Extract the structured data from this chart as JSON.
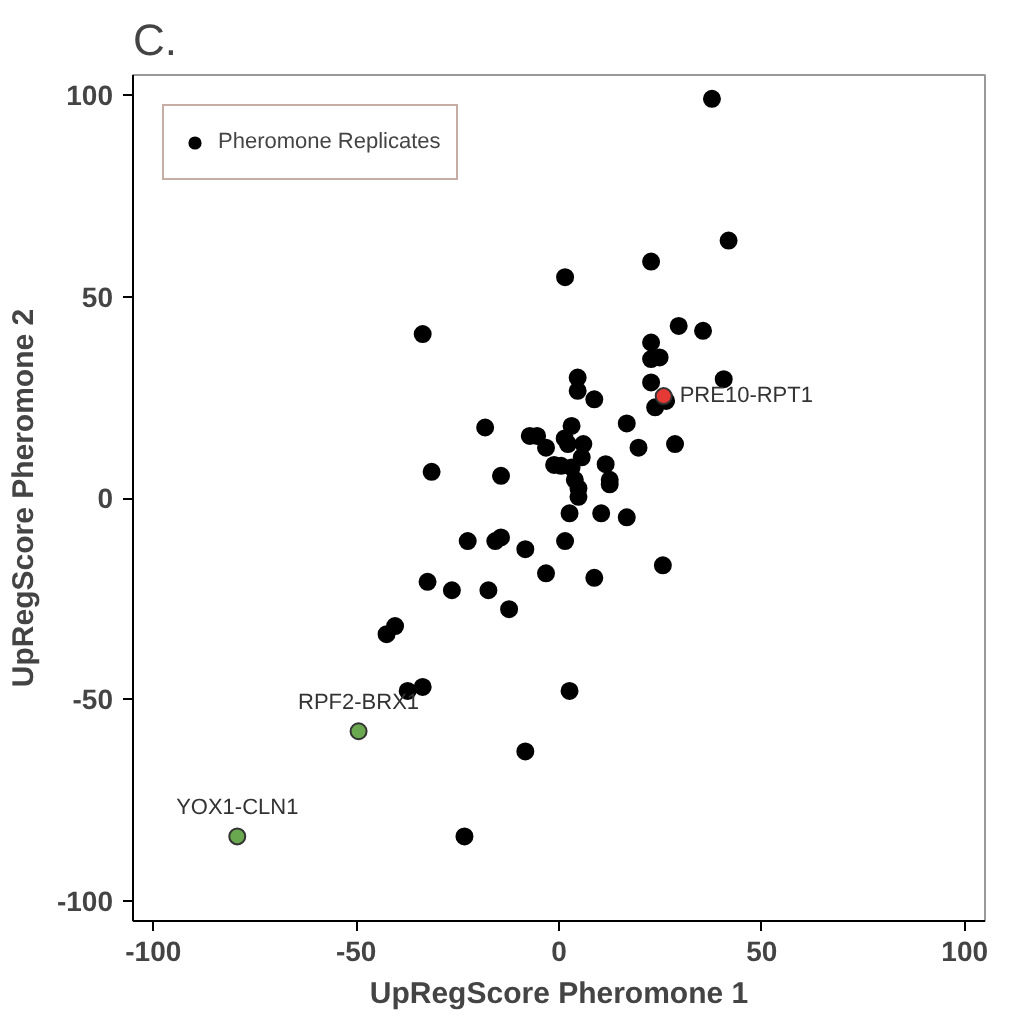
{
  "chart_data": {
    "type": "scatter",
    "title": "C.",
    "xlabel": "UpRegScore Pheromone 1",
    "ylabel": "UpRegScore Pheromone 2",
    "xlim": [
      -105,
      105
    ],
    "ylim": [
      -105,
      105
    ],
    "xticks": [
      -100,
      -50,
      0,
      50,
      100
    ],
    "yticks": [
      -100,
      -50,
      0,
      50,
      100
    ],
    "grid": false,
    "legend": "top left",
    "marker": "circle",
    "series": [
      {
        "name": "Pheromone Replicates",
        "color": "#000000",
        "x": [
          -33.6,
          -18.2,
          -31.4,
          -14.3,
          -7.2,
          -5.4,
          -3.2,
          -1.2,
          37.7,
          41.8,
          22.7,
          1.5,
          29.5,
          35.5,
          22.7,
          22.7,
          24.8,
          40.6,
          22.7,
          4.6,
          4.6,
          8.7,
          23.7,
          26.4,
          16.7,
          28.6,
          19.6,
          3.1,
          1.4,
          2.2,
          6.0,
          0.5,
          3.1,
          5.6,
          11.5,
          12.5,
          3.9,
          4.8,
          4.8,
          12.5,
          2.6,
          10.4,
          16.7,
          -3.2,
          1.5,
          8.7,
          25.6,
          2.6,
          -22.5,
          -15.7,
          -14.3,
          -8.3,
          -32.4,
          -26.4,
          -17.4,
          -12.3,
          -42.5,
          -40.4,
          -37.3,
          -33.6,
          -8.3,
          -23.3
        ],
        "values": [
          40.7,
          17.5,
          6.5,
          5.5,
          15.4,
          15.4,
          12.5,
          8.2,
          99.1,
          63.9,
          58.7,
          54.8,
          42.7,
          41.5,
          38.6,
          34.5,
          34.9,
          29.5,
          28.7,
          29.9,
          26.6,
          24.5,
          22.5,
          24.1,
          18.5,
          13.4,
          12.5,
          17.9,
          14.8,
          13.4,
          13.4,
          8.0,
          7.6,
          10.1,
          8.4,
          4.5,
          4.5,
          2.4,
          0.3,
          3.4,
          -3.8,
          -3.8,
          -4.8,
          -18.7,
          -10.7,
          -19.8,
          -16.7,
          -47.9,
          -10.7,
          -10.7,
          -9.8,
          -12.7,
          -20.8,
          -22.9,
          -22.9,
          -27.6,
          -33.8,
          -31.8,
          -47.9,
          -46.9,
          -62.9,
          -84
        ]
      },
      {
        "color": "#e53935",
        "x": [
          25.8
        ],
        "values": [
          25.3
        ]
      },
      {
        "color": "#6aa84f",
        "x": [
          -49.4,
          -79.3
        ],
        "values": [
          -57.9,
          -84
        ]
      }
    ],
    "annotations": [
      {
        "text": "PRE10-RPT1",
        "x": 25.8,
        "y": 25.3
      },
      {
        "text": "RPF2-BRX1",
        "x": -49.4,
        "y": -57.9
      },
      {
        "text": "YOX1-CLN1",
        "x": -79.3,
        "y": -84
      }
    ]
  }
}
